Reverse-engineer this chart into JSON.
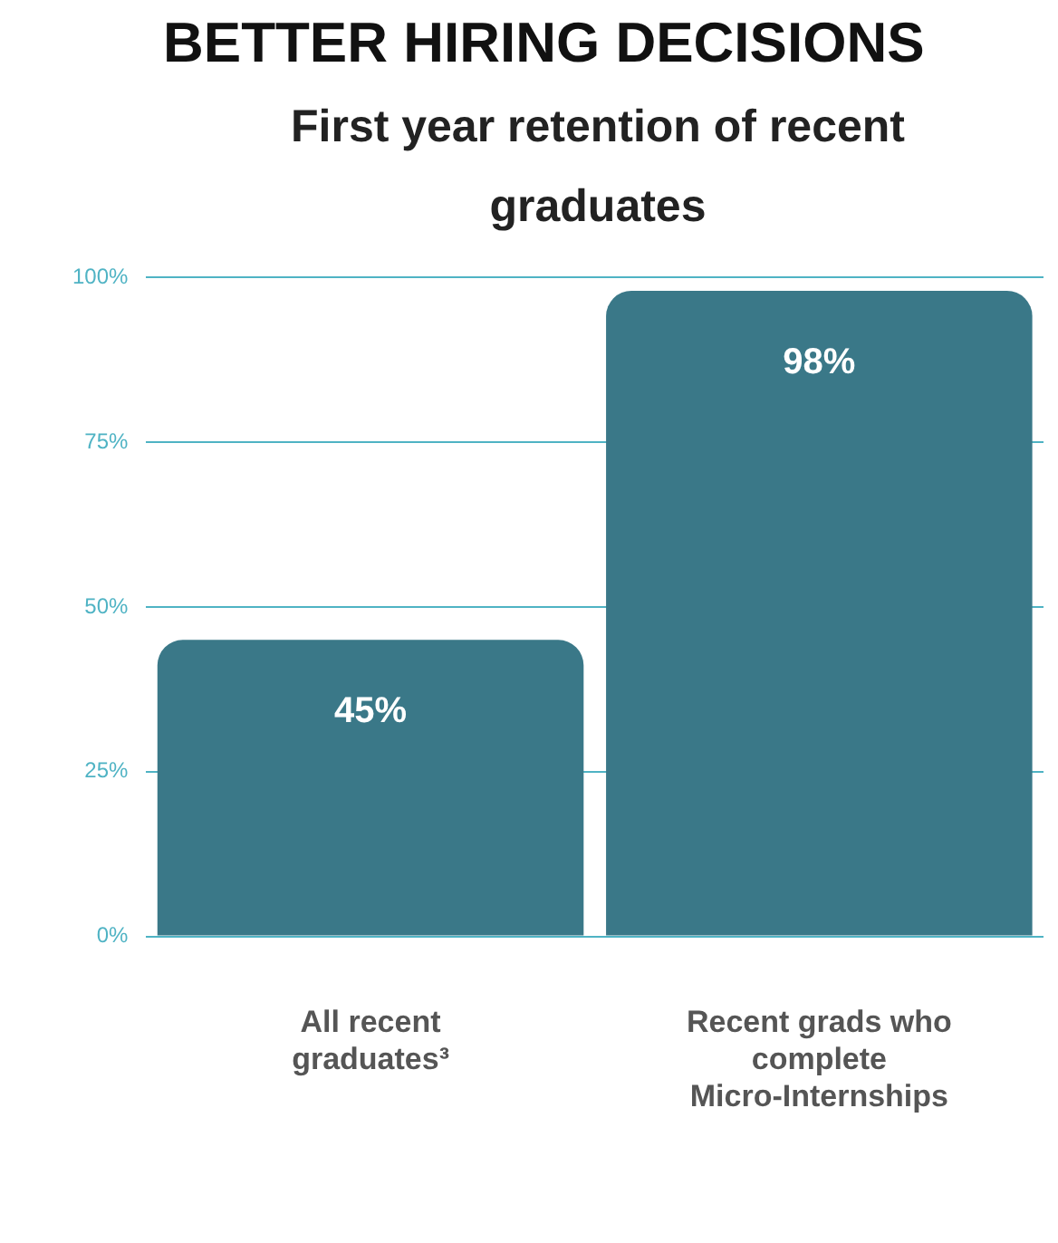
{
  "chart_data": {
    "type": "bar",
    "title": "BETTER HIRING DECISIONS",
    "subtitle": "First year retention of recent graduates",
    "categories": [
      "All recent graduates³",
      "Recent grads who complete Micro-Internships"
    ],
    "values": [
      45,
      98
    ],
    "color": "#3a7888",
    "ylim": [
      0,
      100
    ],
    "yticks": [
      {
        "value": 0,
        "label": "0%"
      },
      {
        "value": 25,
        "label": "25%"
      },
      {
        "value": 50,
        "label": "50%"
      },
      {
        "value": 75,
        "label": "75%"
      },
      {
        "value": 100,
        "label": "100%"
      }
    ],
    "grid": "y",
    "legend": false,
    "value_labels": [
      "45%",
      "98%"
    ]
  }
}
